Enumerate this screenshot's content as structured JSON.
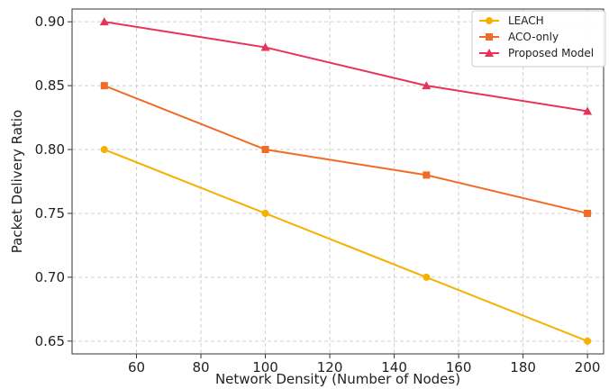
{
  "chart_data": {
    "type": "line",
    "xlabel": "Network Density (Number of Nodes)",
    "ylabel": "Packet Delivery Ratio",
    "x": [
      50,
      100,
      150,
      200
    ],
    "xlim": [
      40,
      205
    ],
    "ylim": [
      0.64,
      0.91
    ],
    "xticks": [
      60,
      80,
      100,
      120,
      140,
      160,
      180,
      200
    ],
    "yticks": [
      0.65,
      0.7,
      0.75,
      0.8,
      0.85,
      0.9
    ],
    "xtick_labels": [
      "60",
      "80",
      "100",
      "120",
      "140",
      "160",
      "180",
      "200"
    ],
    "ytick_labels": [
      "0.65",
      "0.70",
      "0.75",
      "0.80",
      "0.85",
      "0.90"
    ],
    "grid": true,
    "legend_position": "top-right",
    "series": [
      {
        "name": "LEACH",
        "values": [
          0.8,
          0.75,
          0.7,
          0.65
        ],
        "color": "#f5b000",
        "marker": "circle"
      },
      {
        "name": "ACO-only",
        "values": [
          0.85,
          0.8,
          0.78,
          0.75
        ],
        "color": "#ef6b26",
        "marker": "square"
      },
      {
        "name": "Proposed Model",
        "values": [
          0.9,
          0.88,
          0.85,
          0.83
        ],
        "color": "#e8325a",
        "marker": "triangle"
      }
    ]
  }
}
